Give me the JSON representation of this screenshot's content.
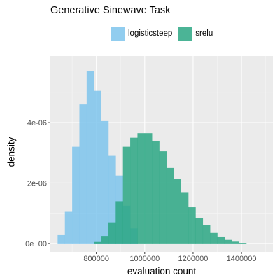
{
  "chart_data": {
    "type": "histogram",
    "title": "Generative Sinewave Task",
    "xlabel": "evaluation count",
    "ylabel": "density",
    "xlim": [
      610000,
      1530000
    ],
    "ylim": [
      -2.8e-07,
      6.2e-06
    ],
    "x_ticks": [
      800000,
      1000000,
      1200000,
      1400000
    ],
    "x_tick_labels": [
      "800000",
      "1000000",
      "1200000",
      "1400000"
    ],
    "y_ticks": [
      0,
      2e-06,
      4e-06
    ],
    "y_tick_labels": [
      "0e+00",
      "2e-06",
      "4e-06"
    ],
    "grid": true,
    "legend_position": "top",
    "bin_width": 30000,
    "series": [
      {
        "name": "logisticsteep",
        "color": "#7ec4ec",
        "bin_left": [
          640000,
          670000,
          700000,
          730000,
          760000,
          790000,
          820000,
          850000,
          880000,
          910000,
          940000
        ],
        "density": [
          3e-07,
          1.05e-06,
          3.2e-06,
          4.6e-06,
          5.7e-06,
          5.05e-06,
          4.05e-06,
          2.9e-06,
          2.25e-06,
          1.25e-06,
          5e-07
        ]
      },
      {
        "name": "srelu",
        "color": "#2ba784",
        "bin_left": [
          790000,
          820000,
          850000,
          880000,
          910000,
          940000,
          970000,
          1000000,
          1030000,
          1060000,
          1090000,
          1120000,
          1150000,
          1180000,
          1210000,
          1240000,
          1270000,
          1300000,
          1330000,
          1360000,
          1390000
        ],
        "density": [
          5e-08,
          2.5e-07,
          7e-07,
          1.4e-06,
          3.2e-06,
          3.5e-06,
          3.65e-06,
          3.65e-06,
          3.4e-06,
          3.05e-06,
          2.5e-06,
          2.15e-06,
          1.7e-06,
          1.2e-06,
          8.5e-07,
          6e-07,
          3.5e-07,
          2.3e-07,
          1.2e-07,
          6e-08,
          2e-08
        ]
      }
    ]
  }
}
